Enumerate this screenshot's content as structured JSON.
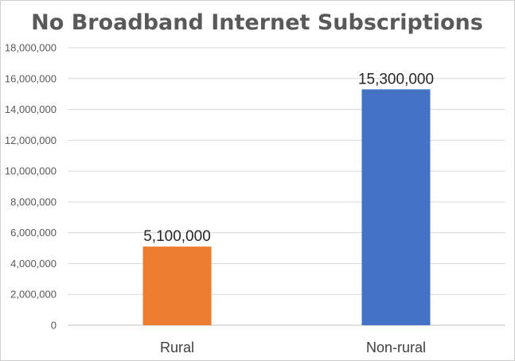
{
  "chart_data": {
    "type": "bar",
    "title": "No Broadband Internet Subscriptions",
    "xlabel": "",
    "ylabel": "",
    "categories": [
      "Rural",
      "Non-rural"
    ],
    "values": [
      5100000,
      15300000
    ],
    "data_labels": [
      "5,100,000",
      "15,300,000"
    ],
    "colors": [
      "#ed7d31",
      "#4472c4"
    ],
    "ylim": [
      0,
      18000000
    ],
    "yticks": [
      0,
      2000000,
      4000000,
      6000000,
      8000000,
      10000000,
      12000000,
      14000000,
      16000000,
      18000000
    ],
    "ytick_labels": [
      "0",
      "2,000,000",
      "4,000,000",
      "6,000,000",
      "8,000,000",
      "10,000,000",
      "12,000,000",
      "14,000,000",
      "16,000,000",
      "18,000,000"
    ],
    "grid": true,
    "legend": "none"
  }
}
